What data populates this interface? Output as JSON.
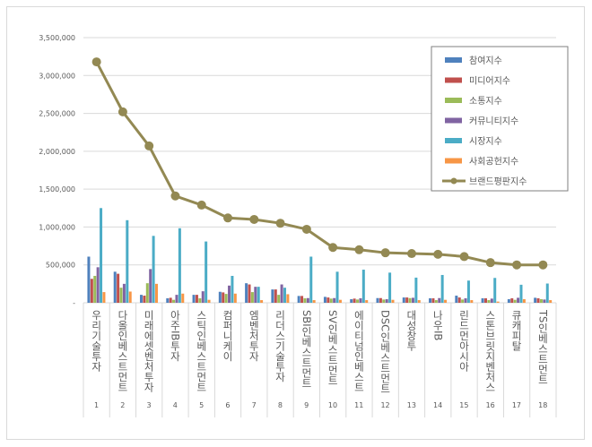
{
  "chart_data": {
    "type": "bar",
    "title": "",
    "xlabel": "",
    "ylabel": "",
    "ylim": [
      0,
      3500000
    ],
    "yticks": [
      "-",
      "500,000",
      "1,000,000",
      "1,500,000",
      "2,000,000",
      "2,500,000",
      "3,000,000",
      "3,500,000"
    ],
    "grid": true,
    "legend_position": "top-right",
    "categories": [
      "우리기술투자",
      "다올인베스트먼트",
      "미래에셋벤처투자",
      "아주IB투자",
      "스틱인베스트먼트",
      "컴퍼니케이",
      "엠벤처투자",
      "리더스기술투자",
      "SBI인베스트먼트",
      "SV인베스트먼트",
      "에이티넘인베스트",
      "DSC인베스트먼트",
      "대성창투",
      "나우IB",
      "린드먼아시아",
      "스톤브릿지벤처스",
      "큐캐피탈",
      "TS인베스트먼트"
    ],
    "ranks": [
      "1",
      "2",
      "3",
      "4",
      "5",
      "6",
      "7",
      "8",
      "9",
      "10",
      "11",
      "12",
      "13",
      "14",
      "15",
      "16",
      "17",
      "18"
    ],
    "series": [
      {
        "name": "참여지수",
        "type": "bar",
        "color": "#4F81BD",
        "values": [
          609000,
          410000,
          105000,
          59000,
          105000,
          145000,
          258000,
          176000,
          90000,
          78000,
          47000,
          62000,
          70000,
          59000,
          94000,
          59000,
          47000,
          66000
        ]
      },
      {
        "name": "미디어지수",
        "type": "bar",
        "color": "#C0504D",
        "values": [
          316000,
          383000,
          94000,
          66000,
          105000,
          137000,
          242000,
          176000,
          90000,
          70000,
          55000,
          62000,
          70000,
          59000,
          70000,
          59000,
          59000,
          59000
        ]
      },
      {
        "name": "소통지수",
        "type": "bar",
        "color": "#9BBB59",
        "values": [
          355000,
          199000,
          258000,
          39000,
          59000,
          117000,
          141000,
          105000,
          59000,
          55000,
          43000,
          43000,
          62000,
          35000,
          43000,
          35000,
          39000,
          47000
        ]
      },
      {
        "name": "커뮤니티지수",
        "type": "bar",
        "color": "#8064A2",
        "values": [
          469000,
          250000,
          445000,
          105000,
          152000,
          227000,
          211000,
          242000,
          62000,
          62000,
          59000,
          47000,
          66000,
          62000,
          59000,
          55000,
          66000,
          43000
        ]
      },
      {
        "name": "시장지수",
        "type": "bar",
        "color": "#4BACC6",
        "values": [
          1250000,
          1090000,
          883000,
          984000,
          809000,
          355000,
          211000,
          199000,
          609000,
          410000,
          437000,
          398000,
          332000,
          367000,
          293000,
          328000,
          238000,
          254000
        ]
      },
      {
        "name": "사회공헌지수",
        "type": "bar",
        "color": "#F79646",
        "values": [
          141000,
          148000,
          250000,
          121000,
          39000,
          121000,
          35000,
          113000,
          35000,
          39000,
          35000,
          39000,
          35000,
          39000,
          35000,
          16000,
          47000,
          35000
        ]
      },
      {
        "name": "브랜드평판지수",
        "type": "line",
        "color": "#938953",
        "values": [
          3180000,
          2520000,
          2070000,
          1410000,
          1290000,
          1120000,
          1100000,
          1050000,
          970000,
          730000,
          700000,
          660000,
          650000,
          640000,
          610000,
          530000,
          500000,
          500000
        ]
      }
    ]
  }
}
